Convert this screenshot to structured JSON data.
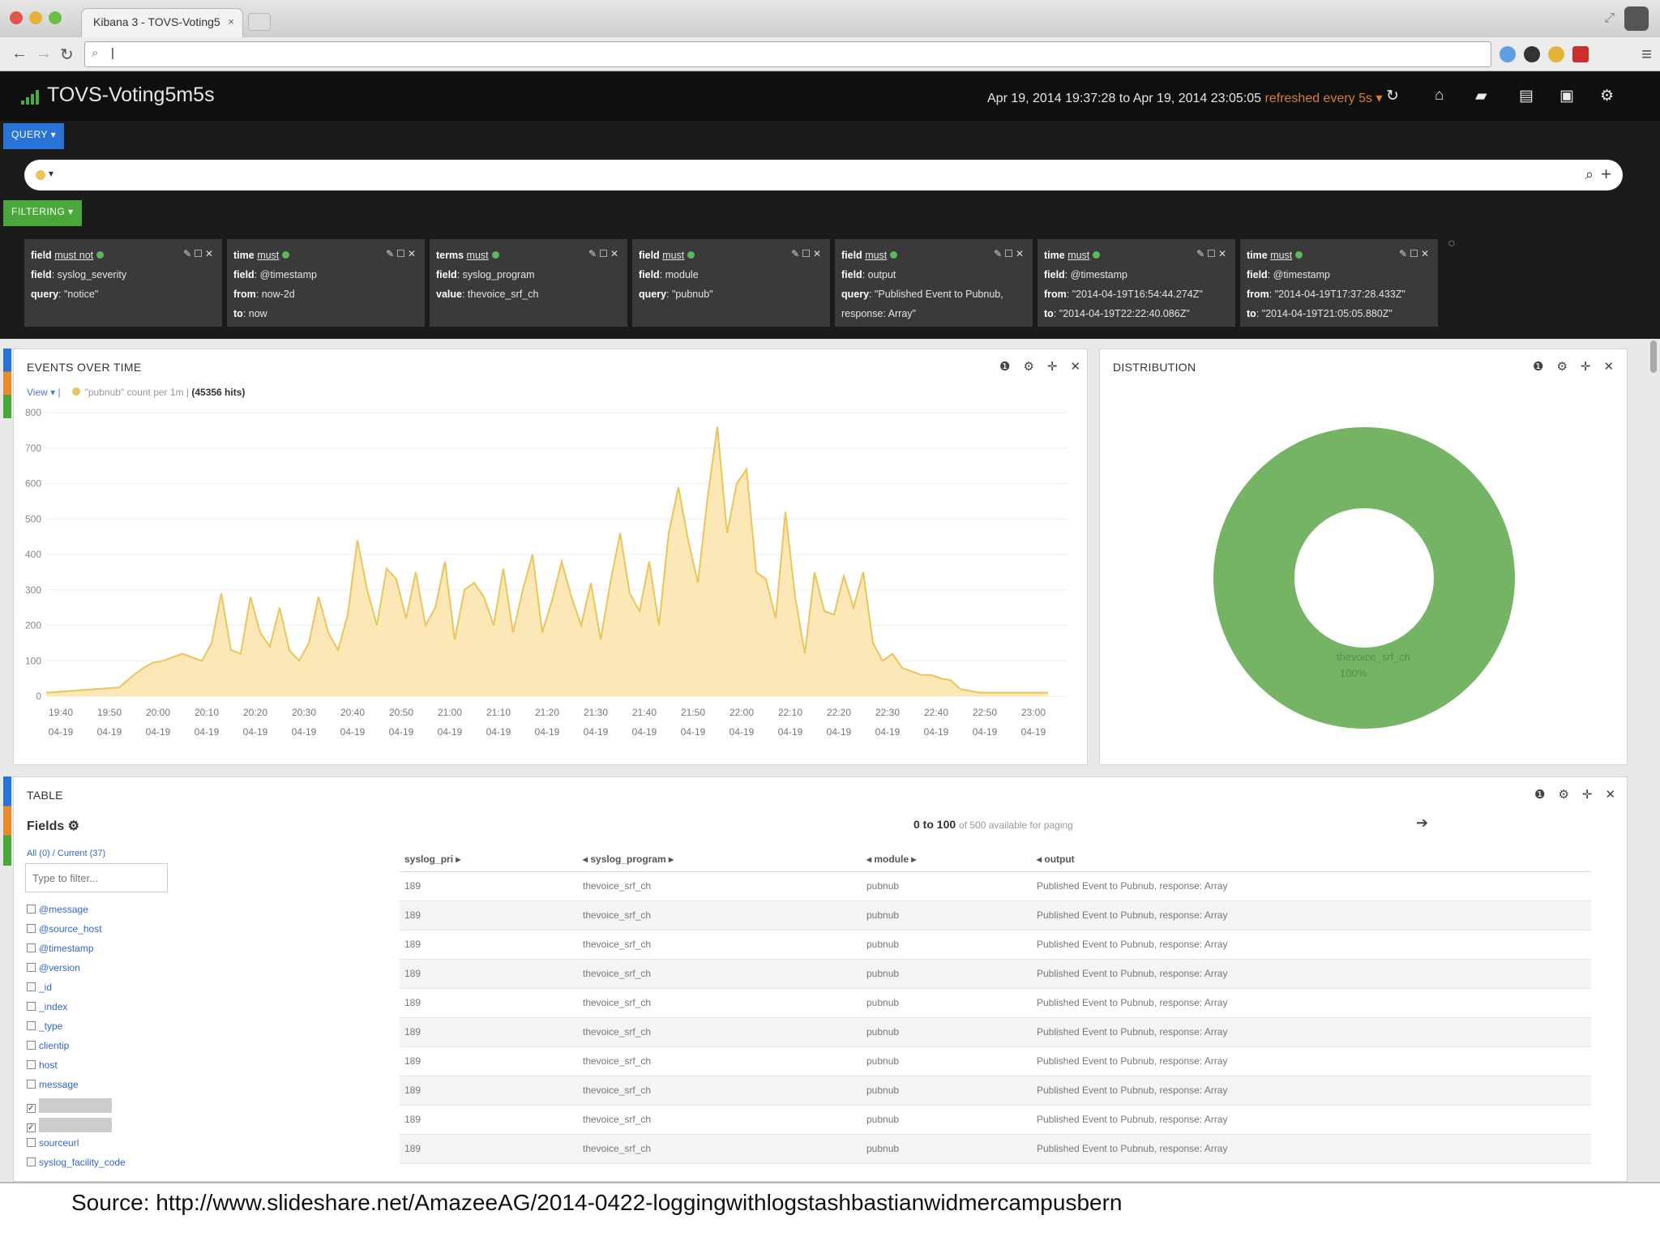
{
  "browser": {
    "tab_title": "Kibana 3 - TOVS-Voting5",
    "tab_close": "×"
  },
  "header": {
    "title": "TOVS-Voting5m5s",
    "time_range": "Apr 19, 2014 19:37:28 to Apr 19, 2014 23:05:05",
    "refresh_label": "refreshed every 5s ▾",
    "colors": {
      "background": "#0f0f0f",
      "refresh": "#d2812f"
    }
  },
  "query": {
    "section_label": "QUERY ▾",
    "caret": "▾",
    "search_icon": "search-icon",
    "add_icon": "plus-icon"
  },
  "filtering": {
    "section_label": "FILTERING ▾",
    "filters": [
      {
        "head_key": "field",
        "head_val": "must not",
        "lines": [
          [
            "field",
            ": syslog_severity"
          ],
          [
            "query",
            ": \"notice\""
          ]
        ]
      },
      {
        "head_key": "time",
        "head_val": "must",
        "lines": [
          [
            "field",
            ": @timestamp"
          ],
          [
            "from",
            ": now-2d"
          ],
          [
            "to",
            ": now"
          ]
        ]
      },
      {
        "head_key": "terms",
        "head_val": "must",
        "lines": [
          [
            "field",
            ": syslog_program"
          ],
          [
            "value",
            ": thevoice_srf_ch"
          ]
        ]
      },
      {
        "head_key": "field",
        "head_val": "must",
        "lines": [
          [
            "field",
            ": module"
          ],
          [
            "query",
            ": \"pubnub\""
          ]
        ]
      },
      {
        "head_key": "field",
        "head_val": "must",
        "lines": [
          [
            "field",
            ": output"
          ],
          [
            "query",
            ": \"Published Event to Pubnub,"
          ],
          [
            "",
            "response: Array\""
          ]
        ]
      },
      {
        "head_key": "time",
        "head_val": "must",
        "lines": [
          [
            "field",
            ": @timestamp"
          ],
          [
            "from",
            ": \"2014-04-19T16:54:44.274Z\""
          ],
          [
            "to",
            ": \"2014-04-19T22:22:40.086Z\""
          ]
        ]
      },
      {
        "head_key": "time",
        "head_val": "must",
        "lines": [
          [
            "field",
            ": @timestamp"
          ],
          [
            "from",
            ": \"2014-04-19T17:37:28.433Z\""
          ],
          [
            "to",
            ": \"2014-04-19T21:05:05.880Z\""
          ]
        ]
      }
    ]
  },
  "events_panel": {
    "title": "EVENTS OVER TIME",
    "view_label": "View ▾ |",
    "legend_query": "\"pubnub\"",
    "legend_text": "count per 1m |",
    "legend_total": "(45356 hits)"
  },
  "distribution_panel": {
    "title": "DISTRIBUTION",
    "slice_label": "thevoice_srf_ch",
    "slice_pct": "100%"
  },
  "table_panel": {
    "title": "TABLE",
    "fields_title": "Fields ⚙",
    "fields_all": "All (0) / Current (37)",
    "filter_placeholder": "Type to filter...",
    "paging_range": "0 to 100",
    "paging_note": "of 500 available for paging",
    "field_items": [
      {
        "label": "@message",
        "checked": false
      },
      {
        "label": "@source_host",
        "checked": false
      },
      {
        "label": "@timestamp",
        "checked": false
      },
      {
        "label": "@version",
        "checked": false
      },
      {
        "label": "_id",
        "checked": false
      },
      {
        "label": "_index",
        "checked": false
      },
      {
        "label": "_type",
        "checked": false
      },
      {
        "label": "clientip",
        "checked": false
      },
      {
        "label": "host",
        "checked": false
      },
      {
        "label": "message",
        "checked": false
      },
      {
        "label": "",
        "checked": true
      },
      {
        "label": "",
        "checked": true
      },
      {
        "label": "sourceurl",
        "checked": false
      },
      {
        "label": "syslog_facility_code",
        "checked": false
      }
    ],
    "columns": [
      "syslog_pri ▸",
      "◂ syslog_program ▸",
      "◂ module ▸",
      "◂ output"
    ],
    "rows": [
      [
        "189",
        "thevoice_srf_ch",
        "pubnub",
        "Published Event to Pubnub, response: Array"
      ],
      [
        "189",
        "thevoice_srf_ch",
        "pubnub",
        "Published Event to Pubnub, response: Array"
      ],
      [
        "189",
        "thevoice_srf_ch",
        "pubnub",
        "Published Event to Pubnub, response: Array"
      ],
      [
        "189",
        "thevoice_srf_ch",
        "pubnub",
        "Published Event to Pubnub, response: Array"
      ],
      [
        "189",
        "thevoice_srf_ch",
        "pubnub",
        "Published Event to Pubnub, response: Array"
      ],
      [
        "189",
        "thevoice_srf_ch",
        "pubnub",
        "Published Event to Pubnub, response: Array"
      ],
      [
        "189",
        "thevoice_srf_ch",
        "pubnub",
        "Published Event to Pubnub, response: Array"
      ],
      [
        "189",
        "thevoice_srf_ch",
        "pubnub",
        "Published Event to Pubnub, response: Array"
      ],
      [
        "189",
        "thevoice_srf_ch",
        "pubnub",
        "Published Event to Pubnub, response: Array"
      ],
      [
        "189",
        "thevoice_srf_ch",
        "pubnub",
        "Published Event to Pubnub, response: Array"
      ]
    ]
  },
  "footer": {
    "source": "Source: http://www.slideshare.net/AmazeeAG/2014-0422-loggingwithlogstashbastianwidmercampusbern"
  },
  "chart_data": [
    {
      "type": "area",
      "title": "EVENTS OVER TIME",
      "series_color": "#e9c55c",
      "fill_color": "#fbe8b6",
      "ylim": [
        0,
        800
      ],
      "y_ticks": [
        0,
        100,
        200,
        300,
        400,
        500,
        600,
        700,
        800
      ],
      "x_ticks": [
        {
          "time": "19:40",
          "date": "04-19"
        },
        {
          "time": "19:50",
          "date": "04-19"
        },
        {
          "time": "20:00",
          "date": "04-19"
        },
        {
          "time": "20:10",
          "date": "04-19"
        },
        {
          "time": "20:20",
          "date": "04-19"
        },
        {
          "time": "20:30",
          "date": "04-19"
        },
        {
          "time": "20:40",
          "date": "04-19"
        },
        {
          "time": "20:50",
          "date": "04-19"
        },
        {
          "time": "21:00",
          "date": "04-19"
        },
        {
          "time": "21:10",
          "date": "04-19"
        },
        {
          "time": "21:20",
          "date": "04-19"
        },
        {
          "time": "21:30",
          "date": "04-19"
        },
        {
          "time": "21:40",
          "date": "04-19"
        },
        {
          "time": "21:50",
          "date": "04-19"
        },
        {
          "time": "22:00",
          "date": "04-19"
        },
        {
          "time": "22:10",
          "date": "04-19"
        },
        {
          "time": "22:20",
          "date": "04-19"
        },
        {
          "time": "22:30",
          "date": "04-19"
        },
        {
          "time": "22:40",
          "date": "04-19"
        },
        {
          "time": "22:50",
          "date": "04-19"
        },
        {
          "time": "23:00",
          "date": "04-19"
        }
      ],
      "x_minutes": [
        0,
        5,
        10,
        15,
        18,
        20,
        22,
        24,
        26,
        28,
        30,
        32,
        34,
        36,
        38,
        40,
        42,
        44,
        46,
        48,
        50,
        52,
        54,
        56,
        58,
        60,
        62,
        64,
        66,
        68,
        70,
        72,
        74,
        76,
        78,
        80,
        82,
        84,
        86,
        88,
        90,
        92,
        94,
        96,
        98,
        100,
        102,
        104,
        106,
        108,
        110,
        112,
        114,
        116,
        118,
        120,
        122,
        124,
        126,
        128,
        130,
        132,
        134,
        136,
        138,
        140,
        142,
        144,
        146,
        148,
        150,
        152,
        154,
        156,
        158,
        160,
        162,
        164,
        166,
        168,
        170,
        172,
        174,
        176,
        178,
        180,
        182,
        184,
        186,
        188,
        190,
        192,
        194,
        196,
        198,
        200,
        202,
        204,
        206
      ],
      "x_origin": "19:37",
      "values": [
        10,
        15,
        20,
        25,
        60,
        80,
        95,
        100,
        110,
        120,
        110,
        100,
        150,
        290,
        130,
        120,
        280,
        180,
        140,
        250,
        130,
        100,
        150,
        280,
        180,
        130,
        230,
        440,
        300,
        200,
        360,
        330,
        220,
        350,
        200,
        250,
        380,
        160,
        300,
        320,
        280,
        200,
        360,
        180,
        300,
        400,
        180,
        270,
        380,
        280,
        200,
        320,
        160,
        320,
        460,
        290,
        240,
        380,
        200,
        460,
        590,
        440,
        320,
        560,
        760,
        460,
        600,
        640,
        350,
        330,
        220,
        520,
        280,
        120,
        350,
        240,
        230,
        340,
        250,
        350,
        150,
        100,
        120,
        80,
        70,
        60,
        60,
        50,
        45,
        20,
        15,
        10,
        10,
        10,
        10,
        10,
        10,
        10,
        10
      ]
    },
    {
      "type": "pie",
      "title": "DISTRIBUTION",
      "labels": [
        "thevoice_srf_ch"
      ],
      "values": [
        100
      ],
      "colors": [
        "#75b465"
      ]
    }
  ]
}
